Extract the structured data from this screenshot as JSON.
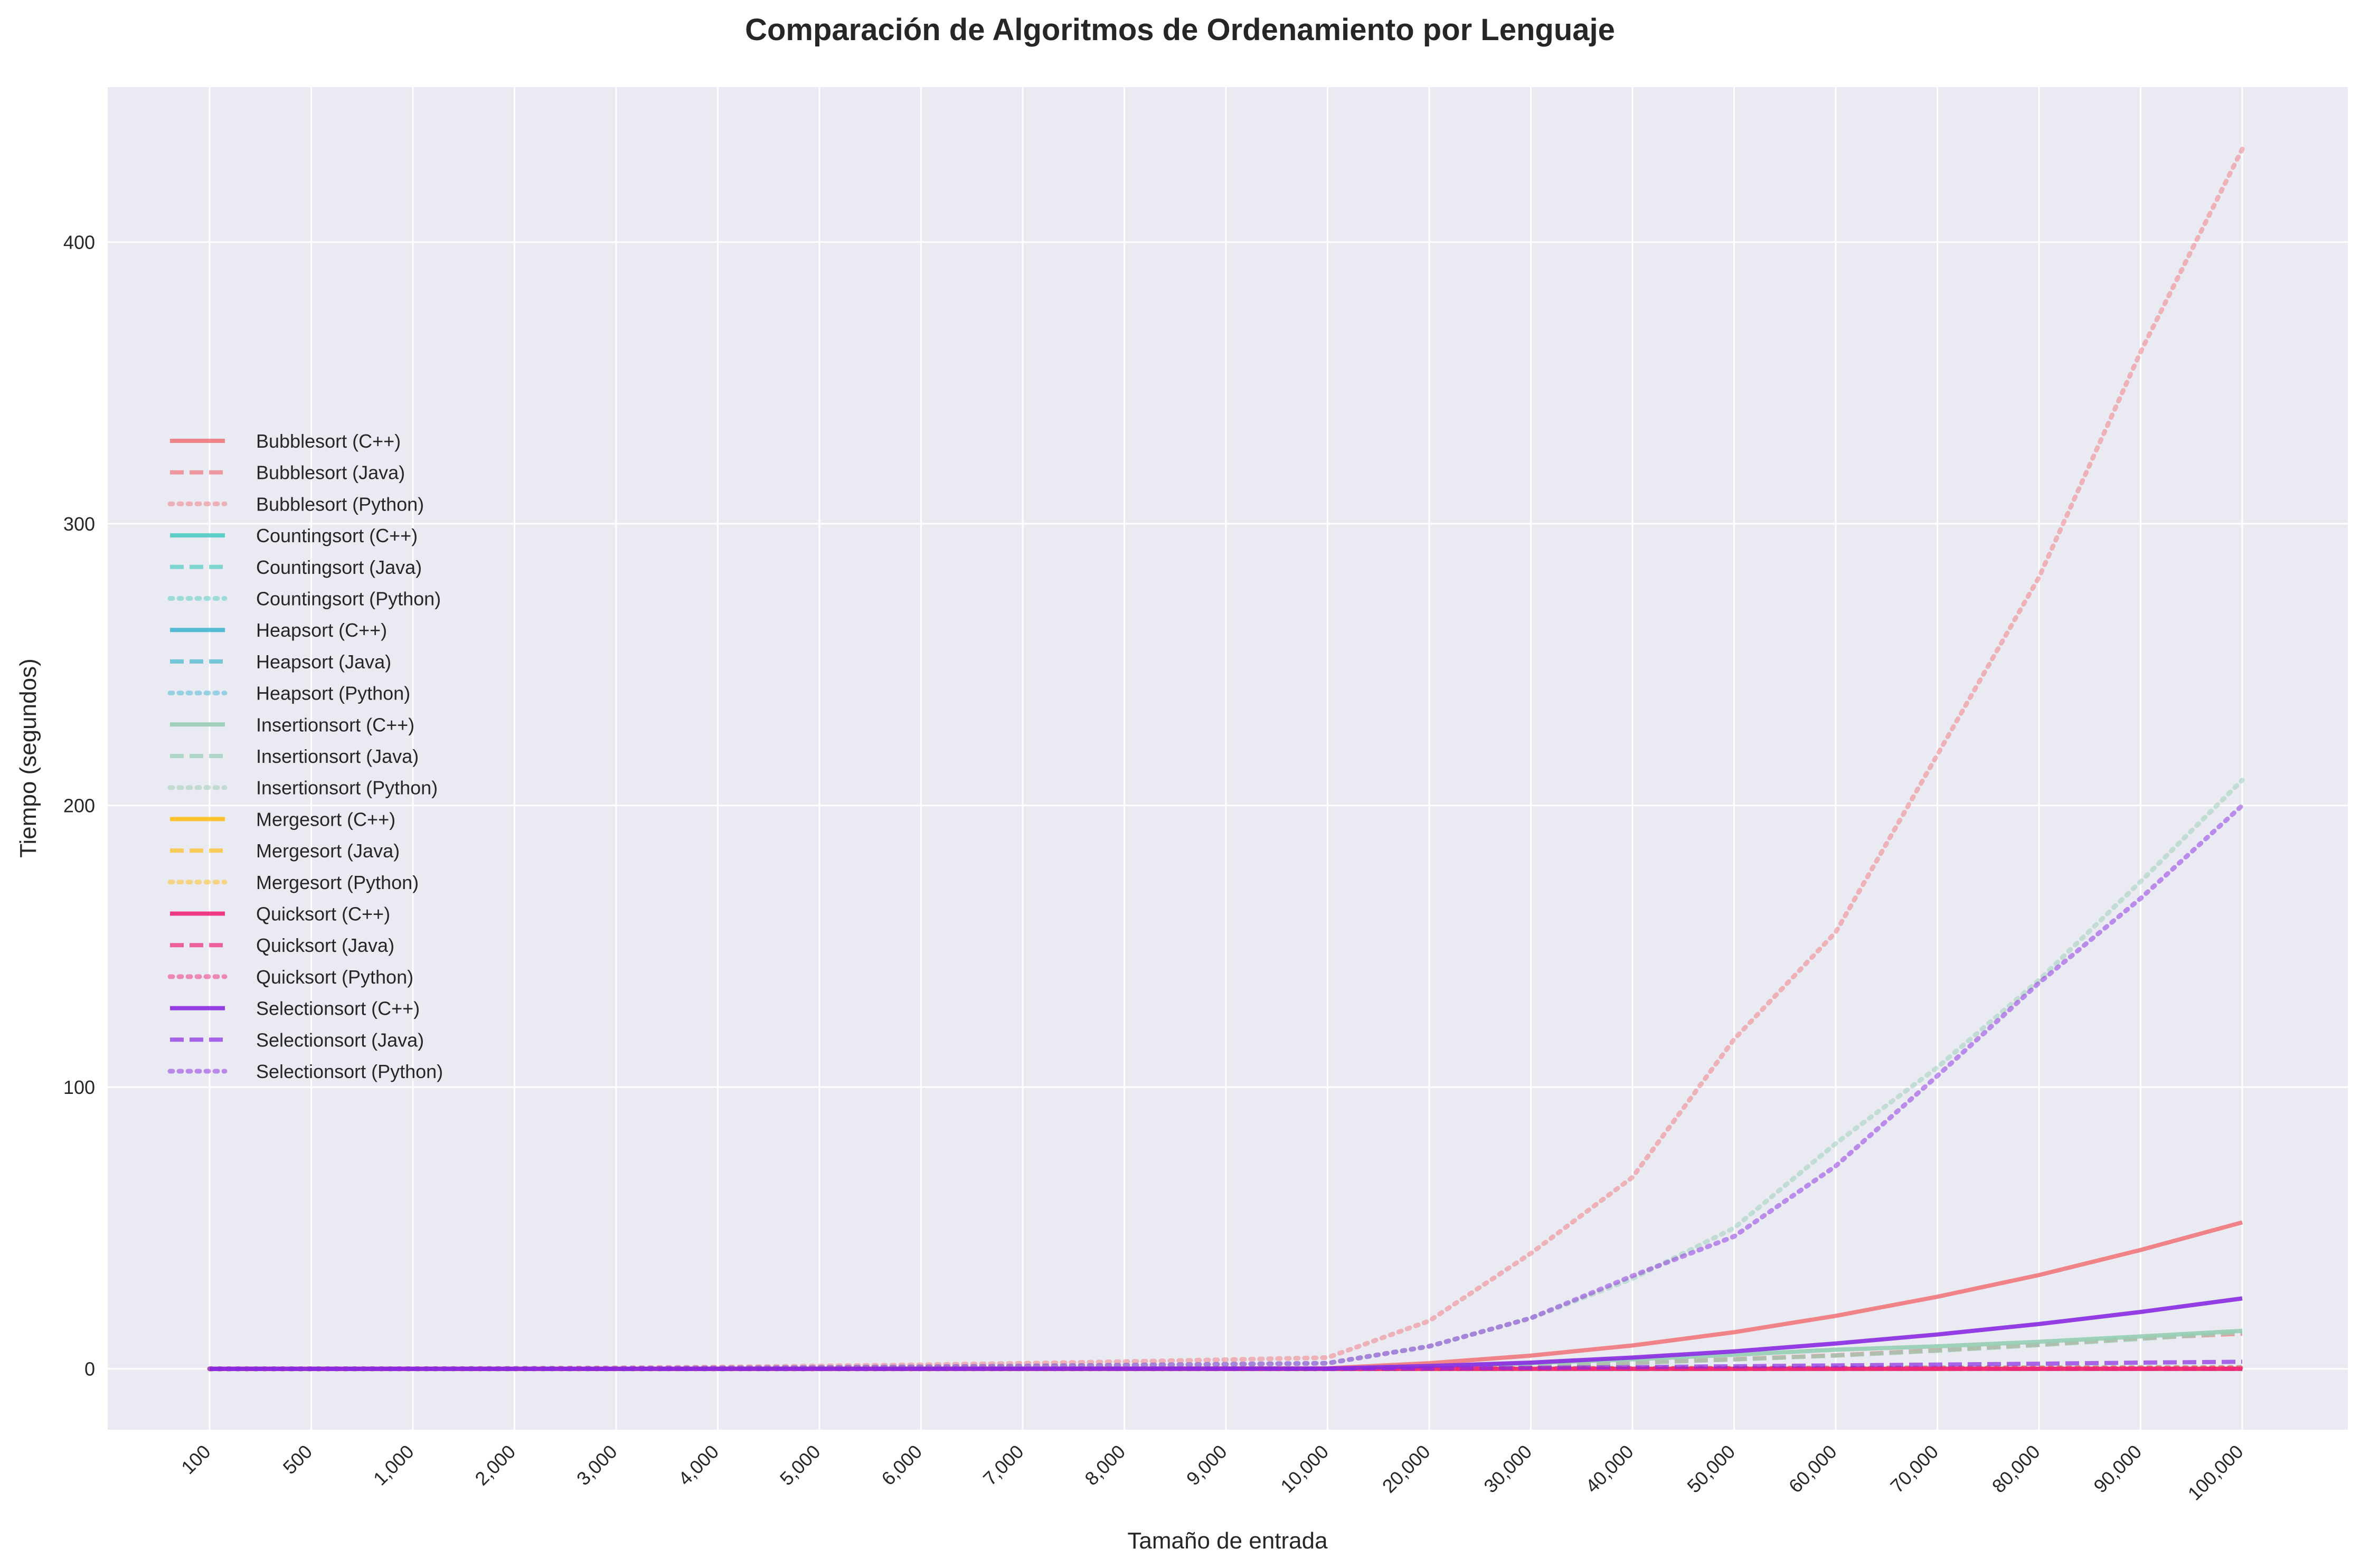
{
  "chart_data": {
    "type": "line",
    "title": "Comparación de Algoritmos de Ordenamiento por Lenguaje",
    "xlabel": "Tamaño de entrada",
    "ylabel": "Tiempo (segundos)",
    "x_scale": "categorical",
    "categories": [
      "100",
      "500",
      "1,000",
      "2,000",
      "3,000",
      "4,000",
      "5,000",
      "6,000",
      "7,000",
      "8,000",
      "9,000",
      "10,000",
      "20,000",
      "30,000",
      "40,000",
      "50,000",
      "60,000",
      "70,000",
      "80,000",
      "90,000",
      "100,000"
    ],
    "ylim": [
      -21.6,
      455
    ],
    "yticks": [
      0,
      100,
      200,
      300,
      400
    ],
    "grid": true,
    "background": "#eaeaf2",
    "legend_position": "center-left",
    "series": [
      {
        "name": "Bubblesort (C++)",
        "color": "#f0787c",
        "style": "solid",
        "values": [
          0,
          0,
          0,
          0.01,
          0.02,
          0.03,
          0.05,
          0.07,
          0.1,
          0.13,
          0.17,
          0.2,
          2.0,
          4.7,
          8.3,
          13.0,
          18.8,
          25.6,
          33.3,
          42.2,
          52.0
        ]
      },
      {
        "name": "Bubblesort (Java)",
        "color": "#f0787c",
        "style": "dashed",
        "values": [
          0,
          0,
          0,
          0,
          0.01,
          0.02,
          0.03,
          0.04,
          0.05,
          0.06,
          0.08,
          0.1,
          0.5,
          1.2,
          2.1,
          3.4,
          4.8,
          6.6,
          8.6,
          10.9,
          12.5
        ]
      },
      {
        "name": "Bubblesort (Python)",
        "color": "#f0787c",
        "style": "dotted",
        "values": [
          0,
          0.01,
          0.04,
          0.16,
          0.36,
          0.64,
          1.0,
          1.44,
          1.96,
          2.56,
          3.24,
          4.0,
          17.0,
          41.0,
          68.0,
          117.0,
          155.0,
          218.0,
          281.0,
          361.0,
          433.0
        ]
      },
      {
        "name": "Countingsort (C++)",
        "color": "#4ecdc4",
        "style": "solid",
        "values": [
          0,
          0,
          0,
          0,
          0,
          0,
          0,
          0,
          0,
          0,
          0,
          0,
          0,
          0,
          0,
          0,
          0,
          0,
          0,
          0,
          0
        ]
      },
      {
        "name": "Countingsort (Java)",
        "color": "#4ecdc4",
        "style": "dashed",
        "values": [
          0,
          0,
          0,
          0,
          0,
          0,
          0,
          0,
          0,
          0,
          0,
          0,
          0,
          0,
          0,
          0,
          0,
          0,
          0,
          0,
          0
        ]
      },
      {
        "name": "Countingsort (Python)",
        "color": "#4ecdc4",
        "style": "dotted",
        "values": [
          0,
          0,
          0,
          0,
          0,
          0,
          0,
          0,
          0,
          0,
          0,
          0,
          0.01,
          0.01,
          0.02,
          0.02,
          0.03,
          0.03,
          0.04,
          0.04,
          0.05
        ]
      },
      {
        "name": "Heapsort (C++)",
        "color": "#45b7d1",
        "style": "solid",
        "values": [
          0,
          0,
          0,
          0,
          0,
          0,
          0,
          0,
          0,
          0,
          0,
          0,
          0,
          0.01,
          0.01,
          0.01,
          0.01,
          0.02,
          0.02,
          0.02,
          0.02
        ]
      },
      {
        "name": "Heapsort (Java)",
        "color": "#45b7d1",
        "style": "dashed",
        "values": [
          0,
          0,
          0,
          0,
          0,
          0,
          0,
          0,
          0,
          0,
          0,
          0,
          0.01,
          0.01,
          0.02,
          0.02,
          0.02,
          0.03,
          0.03,
          0.03,
          0.04
        ]
      },
      {
        "name": "Heapsort (Python)",
        "color": "#45b7d1",
        "style": "dotted",
        "values": [
          0,
          0,
          0,
          0.01,
          0.01,
          0.02,
          0.02,
          0.03,
          0.03,
          0.04,
          0.04,
          0.05,
          0.1,
          0.15,
          0.2,
          0.26,
          0.32,
          0.38,
          0.44,
          0.5,
          0.56
        ]
      },
      {
        "name": "Insertionsort (C++)",
        "color": "#96ceb4",
        "style": "solid",
        "values": [
          0,
          0,
          0,
          0,
          0.01,
          0.01,
          0.02,
          0.03,
          0.04,
          0.05,
          0.06,
          0.07,
          0.8,
          2.0,
          3.4,
          5.0,
          6.8,
          8.0,
          9.6,
          11.5,
          13.5
        ]
      },
      {
        "name": "Insertionsort (Java)",
        "color": "#96ceb4",
        "style": "dashed",
        "values": [
          0,
          0,
          0,
          0,
          0.01,
          0.01,
          0.02,
          0.03,
          0.03,
          0.04,
          0.05,
          0.06,
          0.5,
          1.2,
          2.1,
          3.3,
          4.7,
          6.4,
          8.4,
          10.6,
          13.0
        ]
      },
      {
        "name": "Insertionsort (Python)",
        "color": "#96ceb4",
        "style": "dotted",
        "values": [
          0,
          0,
          0.02,
          0.08,
          0.19,
          0.33,
          0.52,
          0.75,
          1.02,
          1.33,
          1.68,
          2.0,
          8.0,
          18.0,
          32.0,
          50.0,
          80.0,
          107.0,
          138.0,
          173.0,
          209.0
        ]
      },
      {
        "name": "Mergesort (C++)",
        "color": "#ffbe1a",
        "style": "solid",
        "values": [
          0,
          0,
          0,
          0,
          0,
          0,
          0,
          0,
          0,
          0,
          0,
          0,
          0,
          0.01,
          0.01,
          0.01,
          0.01,
          0.01,
          0.02,
          0.02,
          0.02
        ]
      },
      {
        "name": "Mergesort (Java)",
        "color": "#ffbe1a",
        "style": "dashed",
        "values": [
          0,
          0,
          0,
          0,
          0,
          0,
          0,
          0,
          0,
          0,
          0,
          0,
          0.01,
          0.01,
          0.02,
          0.02,
          0.03,
          0.03,
          0.04,
          0.04,
          0.05
        ]
      },
      {
        "name": "Mergesort (Python)",
        "color": "#ffbe1a",
        "style": "dotted",
        "values": [
          0,
          0,
          0,
          0.01,
          0.01,
          0.01,
          0.02,
          0.02,
          0.03,
          0.03,
          0.04,
          0.04,
          0.08,
          0.12,
          0.17,
          0.21,
          0.26,
          0.3,
          0.35,
          0.4,
          0.44
        ]
      },
      {
        "name": "Quicksort (C++)",
        "color": "#f0267a",
        "style": "solid",
        "values": [
          0,
          0,
          0,
          0,
          0,
          0,
          0,
          0,
          0,
          0,
          0,
          0,
          0,
          0,
          0,
          0,
          0,
          0,
          0,
          0,
          0
        ]
      },
      {
        "name": "Quicksort (Java)",
        "color": "#f0267a",
        "style": "dashed",
        "values": [
          0,
          0,
          0,
          0,
          0,
          0,
          0,
          0,
          0,
          0,
          0,
          0,
          0,
          0.01,
          0.01,
          0.01,
          0.01,
          0.02,
          0.02,
          0.02,
          0.02
        ]
      },
      {
        "name": "Quicksort (Python)",
        "color": "#f0267a",
        "style": "dotted",
        "values": [
          0,
          0,
          0,
          0,
          0.01,
          0.01,
          0.01,
          0.01,
          0.02,
          0.02,
          0.02,
          0.02,
          0.05,
          0.08,
          0.11,
          0.14,
          0.17,
          0.2,
          0.23,
          0.26,
          0.3
        ]
      },
      {
        "name": "Selectionsort (C++)",
        "color": "#8a2be2",
        "style": "solid",
        "values": [
          0,
          0,
          0,
          0,
          0.01,
          0.01,
          0.02,
          0.03,
          0.04,
          0.05,
          0.06,
          0.08,
          1.0,
          2.2,
          4.0,
          6.2,
          9.0,
          12.2,
          15.9,
          20.2,
          25.0
        ]
      },
      {
        "name": "Selectionsort (Java)",
        "color": "#8a2be2",
        "style": "dashed",
        "values": [
          0,
          0,
          0,
          0,
          0,
          0.01,
          0.01,
          0.01,
          0.02,
          0.02,
          0.03,
          0.03,
          0.15,
          0.35,
          0.6,
          0.9,
          1.2,
          1.5,
          1.8,
          2.2,
          2.5
        ]
      },
      {
        "name": "Selectionsort (Python)",
        "color": "#8a2be2",
        "style": "dotted",
        "values": [
          0,
          0,
          0.02,
          0.08,
          0.18,
          0.32,
          0.5,
          0.72,
          0.98,
          1.28,
          1.62,
          2.0,
          8.0,
          18.0,
          33.0,
          47.0,
          72.0,
          104.0,
          137.0,
          167.0,
          200.0
        ]
      }
    ]
  }
}
